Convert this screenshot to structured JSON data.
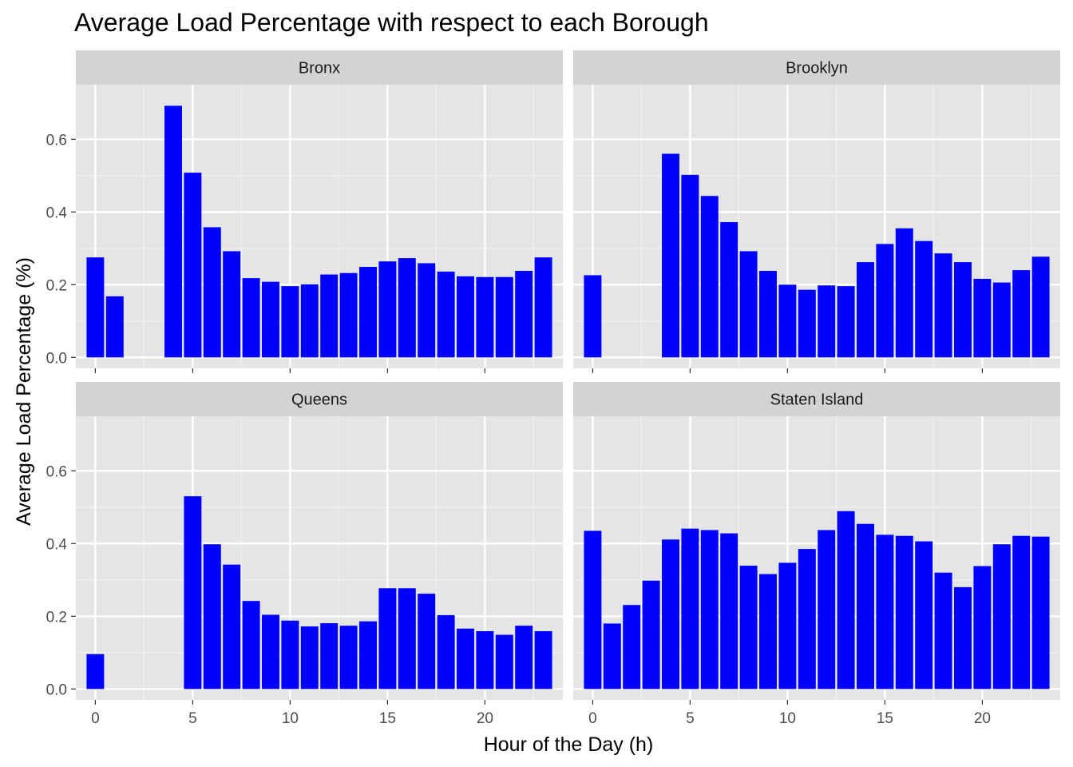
{
  "chart_data": {
    "type": "bar",
    "title": "Average Load Percentage with respect to each Borough",
    "xlabel": "Hour of the Day (h)",
    "ylabel": "Average Load Percentage (%)",
    "xlim": [
      -1,
      24
    ],
    "ylim": [
      -0.03,
      0.75
    ],
    "x_ticks": [
      0,
      5,
      10,
      15,
      20
    ],
    "y_ticks": [
      0.0,
      0.2,
      0.4,
      0.6
    ],
    "y_tick_labels": [
      "0.0",
      "0.2",
      "0.4",
      "0.6"
    ],
    "grid": true,
    "bar_color": "#0000ff",
    "panel_background": "#e5e5e5",
    "strip_background": "#d3d3d3",
    "facets": [
      {
        "name": "Bronx",
        "x": [
          0,
          1,
          4,
          5,
          6,
          7,
          8,
          9,
          10,
          11,
          12,
          13,
          14,
          15,
          16,
          17,
          18,
          19,
          20,
          21,
          22,
          23
        ],
        "values": [
          0.275,
          0.168,
          0.692,
          0.508,
          0.358,
          0.292,
          0.218,
          0.208,
          0.196,
          0.201,
          0.228,
          0.232,
          0.249,
          0.264,
          0.273,
          0.259,
          0.236,
          0.223,
          0.221,
          0.221,
          0.238,
          0.275
        ]
      },
      {
        "name": "Brooklyn",
        "x": [
          0,
          4,
          5,
          6,
          7,
          8,
          9,
          10,
          11,
          12,
          13,
          14,
          15,
          16,
          17,
          18,
          19,
          20,
          21,
          22,
          23
        ],
        "values": [
          0.226,
          0.56,
          0.502,
          0.444,
          0.372,
          0.292,
          0.238,
          0.2,
          0.186,
          0.198,
          0.196,
          0.262,
          0.312,
          0.355,
          0.32,
          0.286,
          0.262,
          0.216,
          0.206,
          0.24,
          0.277
        ]
      },
      {
        "name": "Queens",
        "x": [
          0,
          5,
          6,
          7,
          8,
          9,
          10,
          11,
          12,
          13,
          14,
          15,
          16,
          17,
          18,
          19,
          20,
          21,
          22,
          23
        ],
        "values": [
          0.096,
          0.53,
          0.398,
          0.342,
          0.242,
          0.204,
          0.188,
          0.172,
          0.181,
          0.174,
          0.186,
          0.277,
          0.277,
          0.262,
          0.203,
          0.166,
          0.159,
          0.149,
          0.174,
          0.159
        ]
      },
      {
        "name": "Staten Island",
        "x": [
          0,
          1,
          2,
          3,
          4,
          5,
          6,
          7,
          8,
          9,
          10,
          11,
          12,
          13,
          14,
          15,
          16,
          17,
          18,
          19,
          20,
          21,
          22,
          23
        ],
        "values": [
          0.435,
          0.18,
          0.231,
          0.298,
          0.411,
          0.441,
          0.437,
          0.428,
          0.339,
          0.316,
          0.347,
          0.385,
          0.437,
          0.489,
          0.454,
          0.424,
          0.421,
          0.406,
          0.32,
          0.28,
          0.338,
          0.398,
          0.421,
          0.419
        ]
      }
    ]
  }
}
